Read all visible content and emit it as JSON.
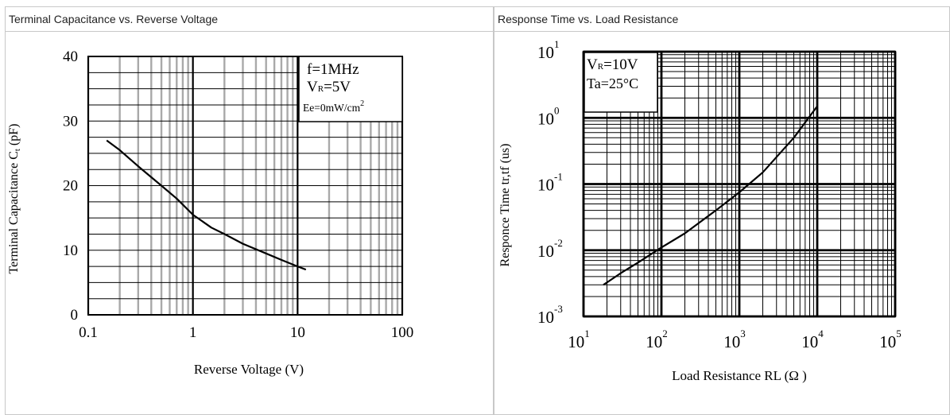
{
  "chart_data": [
    {
      "type": "line",
      "title": "Terminal Capacitance vs. Reverse Voltage",
      "xlabel": "Reverse Voltage (V)",
      "ylabel": "Terminal Capacitance Ct (pF)",
      "xscale": "log",
      "xlim": [
        0.1,
        100
      ],
      "ylim": [
        0,
        40
      ],
      "x_ticks": [
        "0.1",
        "1",
        "10",
        "100"
      ],
      "y_ticks": [
        "0",
        "10",
        "20",
        "30",
        "40"
      ],
      "grid": true,
      "conditions": [
        "f=1MHz",
        "VR=5V",
        "Ee=0mW/cm2"
      ],
      "annotation_box": "top-right",
      "series": [
        {
          "x": [
            0.15,
            0.2,
            0.3,
            0.5,
            0.7,
            1,
            1.5,
            2,
            3,
            5,
            7,
            10,
            12
          ],
          "y": [
            27,
            25.5,
            23,
            20,
            18,
            15.5,
            13.5,
            12.5,
            11,
            9.5,
            8.5,
            7.5,
            7
          ]
        }
      ]
    },
    {
      "type": "line",
      "title": "Response Time vs. Load Resistance",
      "xlabel": "Load Resistance RL (Ω )",
      "ylabel": "Responce Time tr,tf (us)",
      "xscale": "log",
      "yscale": "log",
      "xlim": [
        10,
        100000
      ],
      "ylim": [
        0.001,
        10
      ],
      "x_ticks": [
        {
          "base": "10",
          "exp": "1"
        },
        {
          "base": "10",
          "exp": "2"
        },
        {
          "base": "10",
          "exp": "3"
        },
        {
          "base": "10",
          "exp": "4"
        },
        {
          "base": "10",
          "exp": "5"
        }
      ],
      "y_ticks": [
        {
          "base": "10",
          "exp": "-3"
        },
        {
          "base": "10",
          "exp": "-2"
        },
        {
          "base": "10",
          "exp": "-1"
        },
        {
          "base": "10",
          "exp": "0"
        },
        {
          "base": "10",
          "exp": "1"
        }
      ],
      "grid": true,
      "conditions": [
        "VR=10V",
        "Ta=25°C"
      ],
      "annotation_box": "top-left",
      "series": [
        {
          "x": [
            18,
            30,
            50,
            100,
            200,
            500,
            1000,
            2000,
            5000,
            10000
          ],
          "y": [
            0.003,
            0.0045,
            0.0065,
            0.011,
            0.018,
            0.04,
            0.075,
            0.15,
            0.5,
            1.5
          ]
        }
      ]
    }
  ]
}
